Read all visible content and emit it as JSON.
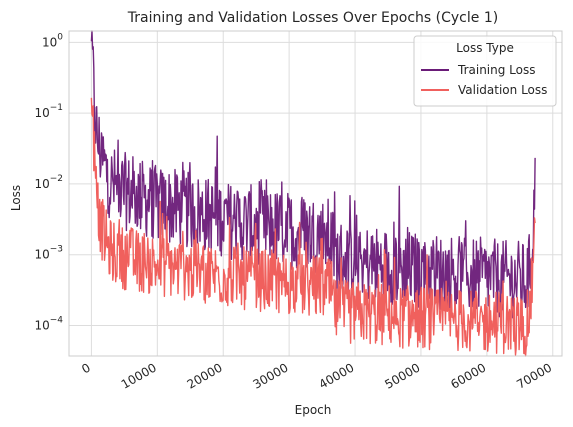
{
  "chart_data": {
    "type": "line",
    "title": "Training and Validation Losses Over Epochs (Cycle 1)",
    "xlabel": "Epoch",
    "ylabel": "Loss",
    "xlim": [
      -3400,
      71400
    ],
    "ylim": [
      3.7e-05,
      1.45
    ],
    "yscale": "log",
    "grid": true,
    "x_ticks": [
      0,
      10000,
      20000,
      30000,
      40000,
      50000,
      60000,
      70000
    ],
    "y_ticks": [
      0.0001,
      0.001,
      0.01,
      0.1,
      1
    ],
    "y_tick_labels": [
      {
        "base": "10",
        "exp": "−4"
      },
      {
        "base": "10",
        "exp": "−3"
      },
      {
        "base": "10",
        "exp": "−2"
      },
      {
        "base": "10",
        "exp": "−1"
      },
      {
        "base": "10",
        "exp": "0"
      }
    ],
    "legend": {
      "title": "Loss Type",
      "placement": "top-right"
    },
    "series": [
      {
        "name": "Training Loss",
        "color": "#6a1b78",
        "x": [
          0,
          200,
          400,
          700,
          1000,
          1500,
          2000,
          2500,
          3000,
          4000,
          5000,
          6000,
          7000,
          8000,
          9000,
          10000,
          11000,
          12000,
          13000,
          14000,
          15000,
          16000,
          17000,
          18000,
          19000,
          20000,
          21000,
          22000,
          23000,
          24000,
          25000,
          26000,
          27000,
          28000,
          29000,
          30000,
          31000,
          32000,
          33000,
          34000,
          35000,
          36000,
          36500,
          37000,
          38000,
          39000,
          40000,
          41000,
          42000,
          43000,
          44000,
          45000,
          46000,
          47000,
          48000,
          49000,
          50000,
          51000,
          52000,
          53000,
          54000,
          55000,
          56000,
          57000,
          58000,
          59000,
          60000,
          61000,
          62000,
          63000,
          64000,
          65000,
          66000,
          66500,
          67000,
          67400
        ],
        "values": [
          0.7,
          0.5,
          0.15,
          0.06,
          0.04,
          0.025,
          0.018,
          0.013,
          0.01,
          0.009,
          0.008,
          0.007,
          0.007,
          0.006,
          0.006,
          0.005,
          0.005,
          0.0048,
          0.0045,
          0.0045,
          0.004,
          0.004,
          0.0038,
          0.0035,
          0.0035,
          0.0033,
          0.003,
          0.003,
          0.0028,
          0.0028,
          0.0026,
          0.0025,
          0.0025,
          0.0024,
          0.0023,
          0.0022,
          0.0022,
          0.0021,
          0.002,
          0.002,
          0.0019,
          0.0018,
          0.0015,
          0.0009,
          0.0009,
          0.0008,
          0.0008,
          0.0008,
          0.00075,
          0.00075,
          0.0007,
          0.0007,
          0.0007,
          0.00065,
          0.00065,
          0.0006,
          0.0006,
          0.0006,
          0.0006,
          0.00055,
          0.00055,
          0.00055,
          0.0005,
          0.0005,
          0.0005,
          0.0005,
          0.00048,
          0.00048,
          0.00045,
          0.00045,
          0.00045,
          0.00045,
          0.00042,
          0.0006,
          0.0025,
          0.012
        ]
      },
      {
        "name": "Validation Loss",
        "color": "#f0605d",
        "x": [
          0,
          200,
          400,
          700,
          1000,
          1500,
          2000,
          2500,
          3000,
          4000,
          5000,
          6000,
          7000,
          8000,
          9000,
          10000,
          11000,
          12000,
          13000,
          14000,
          15000,
          16000,
          17000,
          18000,
          19000,
          20000,
          21000,
          22000,
          23000,
          24000,
          25000,
          26000,
          27000,
          28000,
          29000,
          30000,
          31000,
          32000,
          33000,
          34000,
          35000,
          36000,
          36500,
          37000,
          38000,
          39000,
          40000,
          41000,
          42000,
          43000,
          44000,
          45000,
          46000,
          47000,
          48000,
          49000,
          50000,
          51000,
          52000,
          53000,
          54000,
          55000,
          56000,
          57000,
          58000,
          59000,
          60000,
          61000,
          62000,
          63000,
          64000,
          65000,
          66000,
          66500,
          67000,
          67400
        ],
        "values": [
          0.35,
          0.12,
          0.03,
          0.008,
          0.004,
          0.0025,
          0.0018,
          0.0013,
          0.0011,
          0.001,
          0.0009,
          0.0009,
          0.0008,
          0.0008,
          0.00075,
          0.0007,
          0.0007,
          0.00068,
          0.00065,
          0.00062,
          0.0006,
          0.00058,
          0.00055,
          0.00055,
          0.00052,
          0.0005,
          0.0005,
          0.00048,
          0.00046,
          0.00045,
          0.00045,
          0.00043,
          0.00042,
          0.0004,
          0.0004,
          0.00039,
          0.00038,
          0.00037,
          0.00036,
          0.00035,
          0.00034,
          0.00033,
          0.00028,
          0.00016,
          0.00016,
          0.00015,
          0.00015,
          0.00015,
          0.00015,
          0.00014,
          0.00014,
          0.00014,
          0.00014,
          0.00013,
          0.00013,
          0.00013,
          0.00013,
          0.00013,
          0.00012,
          0.00012,
          0.00012,
          0.00012,
          0.00012,
          0.00012,
          0.00011,
          0.00011,
          0.00011,
          0.00011,
          0.00011,
          0.00011,
          0.0001,
          0.0001,
          0.0001,
          0.00015,
          0.0006,
          0.004
        ]
      }
    ]
  }
}
